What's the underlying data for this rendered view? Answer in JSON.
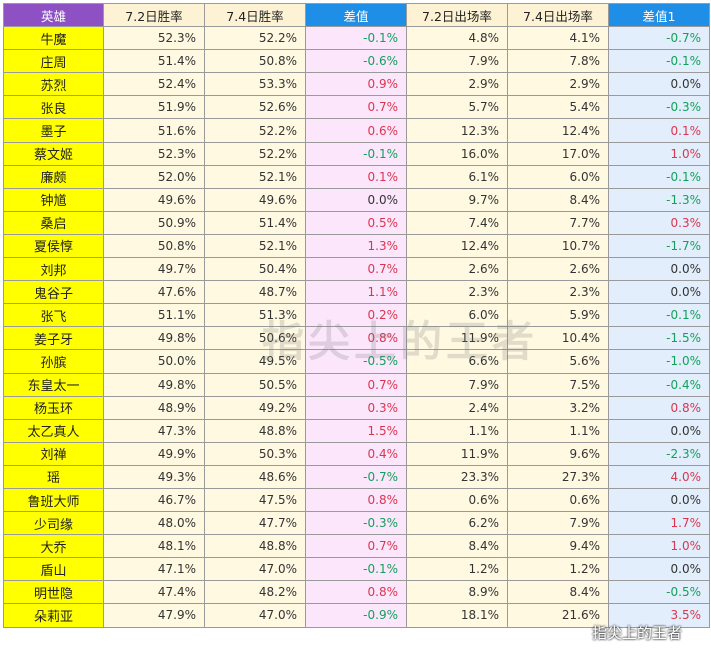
{
  "headers": [
    "英雄",
    "7.2日胜率",
    "7.4日胜率",
    "差值",
    "7.2日出场率",
    "7.4日出场率",
    "差值1"
  ],
  "rows": [
    [
      "牛魔",
      "52.3%",
      "52.2%",
      "-0.1%",
      "4.8%",
      "4.1%",
      "-0.7%"
    ],
    [
      "庄周",
      "51.4%",
      "50.8%",
      "-0.6%",
      "7.9%",
      "7.8%",
      "-0.1%"
    ],
    [
      "苏烈",
      "52.4%",
      "53.3%",
      "0.9%",
      "2.9%",
      "2.9%",
      "0.0%"
    ],
    [
      "张良",
      "51.9%",
      "52.6%",
      "0.7%",
      "5.7%",
      "5.4%",
      "-0.3%"
    ],
    [
      "墨子",
      "51.6%",
      "52.2%",
      "0.6%",
      "12.3%",
      "12.4%",
      "0.1%"
    ],
    [
      "蔡文姬",
      "52.3%",
      "52.2%",
      "-0.1%",
      "16.0%",
      "17.0%",
      "1.0%"
    ],
    [
      "廉颇",
      "52.0%",
      "52.1%",
      "0.1%",
      "6.1%",
      "6.0%",
      "-0.1%"
    ],
    [
      "钟馗",
      "49.6%",
      "49.6%",
      "0.0%",
      "9.7%",
      "8.4%",
      "-1.3%"
    ],
    [
      "桑启",
      "50.9%",
      "51.4%",
      "0.5%",
      "7.4%",
      "7.7%",
      "0.3%"
    ],
    [
      "夏侯惇",
      "50.8%",
      "52.1%",
      "1.3%",
      "12.4%",
      "10.7%",
      "-1.7%"
    ],
    [
      "刘邦",
      "49.7%",
      "50.4%",
      "0.7%",
      "2.6%",
      "2.6%",
      "0.0%"
    ],
    [
      "鬼谷子",
      "47.6%",
      "48.7%",
      "1.1%",
      "2.3%",
      "2.3%",
      "0.0%"
    ],
    [
      "张飞",
      "51.1%",
      "51.3%",
      "0.2%",
      "6.0%",
      "5.9%",
      "-0.1%"
    ],
    [
      "姜子牙",
      "49.8%",
      "50.6%",
      "0.8%",
      "11.9%",
      "10.4%",
      "-1.5%"
    ],
    [
      "孙膑",
      "50.0%",
      "49.5%",
      "-0.5%",
      "6.6%",
      "5.6%",
      "-1.0%"
    ],
    [
      "东皇太一",
      "49.8%",
      "50.5%",
      "0.7%",
      "7.9%",
      "7.5%",
      "-0.4%"
    ],
    [
      "杨玉环",
      "48.9%",
      "49.2%",
      "0.3%",
      "2.4%",
      "3.2%",
      "0.8%"
    ],
    [
      "太乙真人",
      "47.3%",
      "48.8%",
      "1.5%",
      "1.1%",
      "1.1%",
      "0.0%"
    ],
    [
      "刘禅",
      "49.9%",
      "50.3%",
      "0.4%",
      "11.9%",
      "9.6%",
      "-2.3%"
    ],
    [
      "瑶",
      "49.3%",
      "48.6%",
      "-0.7%",
      "23.3%",
      "27.3%",
      "4.0%"
    ],
    [
      "鲁班大师",
      "46.7%",
      "47.5%",
      "0.8%",
      "0.6%",
      "0.6%",
      "0.0%"
    ],
    [
      "少司缘",
      "48.0%",
      "47.7%",
      "-0.3%",
      "6.2%",
      "7.9%",
      "1.7%"
    ],
    [
      "大乔",
      "48.1%",
      "48.8%",
      "0.7%",
      "8.4%",
      "9.4%",
      "1.0%"
    ],
    [
      "盾山",
      "47.1%",
      "47.0%",
      "-0.1%",
      "1.2%",
      "1.2%",
      "0.0%"
    ],
    [
      "明世隐",
      "47.4%",
      "48.2%",
      "0.8%",
      "8.9%",
      "8.4%",
      "-0.5%"
    ],
    [
      "朵莉亚",
      "47.9%",
      "47.0%",
      "-0.9%",
      "18.1%",
      "21.6%",
      "3.5%"
    ]
  ],
  "watermark_center": "指尖上的王者",
  "watermark_corner": "指尖上的王者",
  "colors": {
    "header_hero": "#8e51c4",
    "header_rate": "#fdf3d4",
    "header_diff": "#1f8ee6",
    "hero_cell": "#ffff00",
    "diff_bg": "#fbe6fb",
    "diff1_bg": "#e2eefc",
    "positive": "#d9374f",
    "negative": "#14a05a"
  }
}
